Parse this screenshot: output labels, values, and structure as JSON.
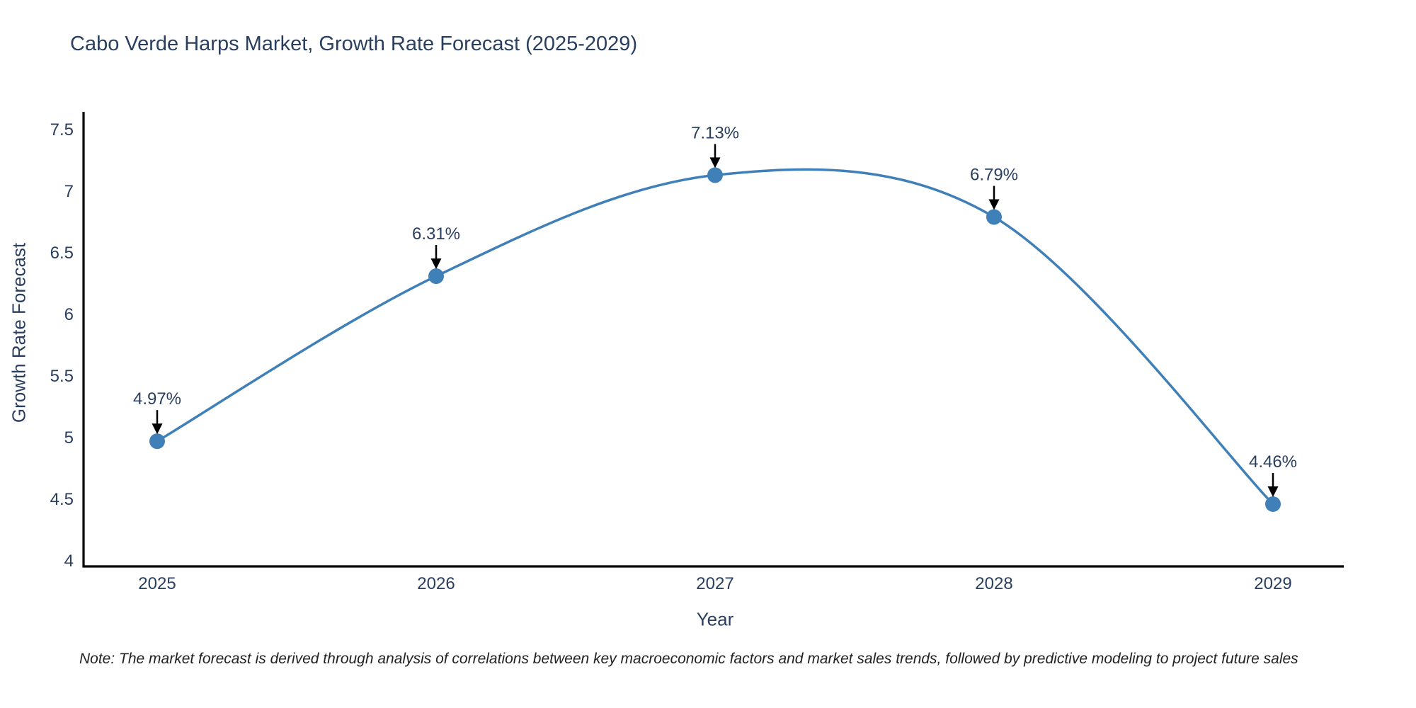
{
  "chart": {
    "title": "Cabo Verde Harps Market, Growth Rate Forecast (2025-2029)",
    "xlabel": "Year",
    "ylabel": "Growth Rate Forecast",
    "note": "Note: The market forecast is derived through analysis of correlations between key macroeconomic factors and market sales trends, followed by predictive modeling to project future sales"
  },
  "chart_data": {
    "type": "line",
    "line_shape": "spline",
    "categories": [
      "2025",
      "2026",
      "2027",
      "2028",
      "2029"
    ],
    "values": [
      4.97,
      6.31,
      7.13,
      6.79,
      4.46
    ],
    "point_labels": [
      "4.97%",
      "6.31%",
      "7.13%",
      "6.79%",
      "4.46%"
    ],
    "title": "Cabo Verde Harps Market, Growth Rate Forecast (2025-2029)",
    "xlabel": "Year",
    "ylabel": "Growth Rate Forecast",
    "yticks": [
      4,
      4.5,
      5,
      5.5,
      6,
      6.5,
      7,
      7.5
    ],
    "ylim": [
      3.95,
      7.65
    ],
    "grid": false,
    "legend": false,
    "line_color": "#4080b8",
    "marker_color": "#4080b8",
    "arrow_color": "#000000",
    "axis_color": "#000000",
    "label_color": "#2a3f5f"
  }
}
